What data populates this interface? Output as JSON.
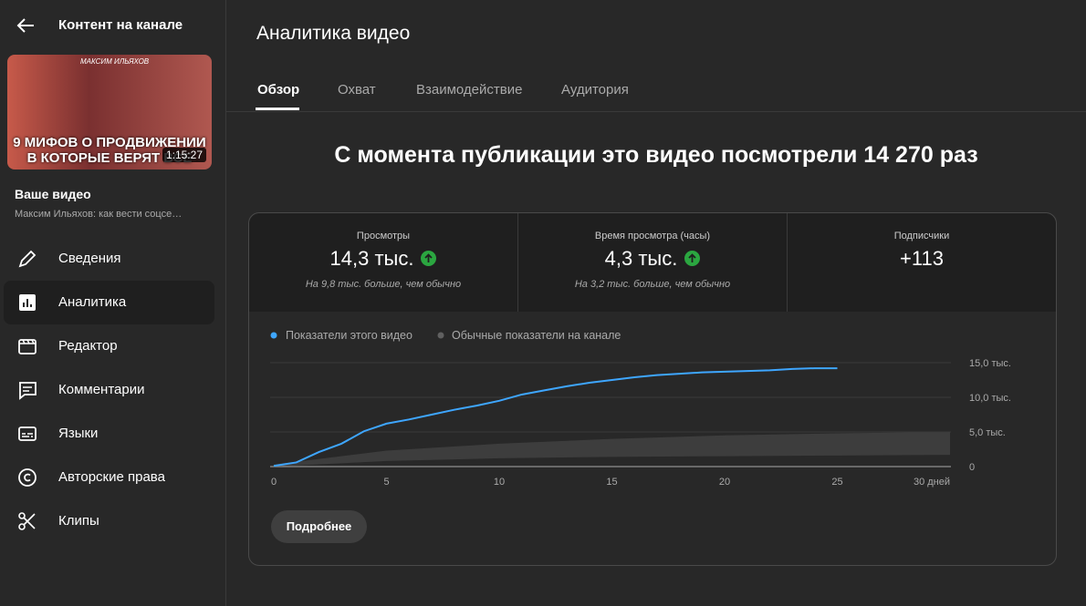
{
  "sidebar": {
    "title": "Контент на канале",
    "thumbnail": {
      "author": "МАКСИМ ИЛЬЯХОВ",
      "line1": "9 МИФОВ О ПРОДВИЖЕНИИ",
      "line2": "В КОТОРЫЕ ВЕРЯТ ВСЕ",
      "duration": "1:15:27"
    },
    "video_label": "Ваше видео",
    "video_title": "Максим Ильяхов: как вести соцсе…",
    "nav": [
      "Сведения",
      "Аналитика",
      "Редактор",
      "Комментарии",
      "Языки",
      "Авторские права",
      "Клипы"
    ]
  },
  "header": {
    "title": "Аналитика видео",
    "tabs": [
      "Обзор",
      "Охват",
      "Взаимодействие",
      "Аудитория"
    ]
  },
  "headline": "С момента публикации это видео посмотрели 14 270 раз",
  "metrics": [
    {
      "label": "Просмотры",
      "value": "14,3 тыс.",
      "note": "На 9,8 тыс. больше, чем обычно"
    },
    {
      "label": "Время просмотра (часы)",
      "value": "4,3 тыс.",
      "note": "На 3,2 тыс. больше, чем обычно"
    },
    {
      "label": "Подписчики",
      "value": "+113"
    }
  ],
  "chart_data": {
    "type": "line",
    "xlim": [
      0,
      30
    ],
    "xticks": [
      0,
      5,
      10,
      15,
      20,
      25,
      {
        "value": 30,
        "label": "30 дней"
      }
    ],
    "ylim": [
      0,
      15000
    ],
    "yticks": [
      0,
      {
        "value": 5000,
        "label": "5,0 тыс."
      },
      {
        "value": 10000,
        "label": "10,0 тыс."
      },
      {
        "value": 15000,
        "label": "15,0 тыс."
      }
    ],
    "grid": true,
    "series": [
      {
        "name": "Показатели этого видео",
        "color": "#3ea6ff",
        "x": [
          0,
          1,
          2,
          3,
          4,
          5,
          6,
          7,
          8,
          9,
          10,
          11,
          12,
          13,
          14,
          15,
          16,
          17,
          18,
          19,
          20,
          21,
          22,
          23,
          24,
          25
        ],
        "values": [
          100,
          600,
          2100,
          3300,
          5100,
          6200,
          6800,
          7500,
          8200,
          8800,
          9500,
          10400,
          11000,
          11600,
          12100,
          12500,
          12900,
          13200,
          13400,
          13600,
          13700,
          13800,
          13900,
          14100,
          14200,
          14200
        ]
      },
      {
        "name": "Обычные показатели на канале",
        "color": "#606060",
        "x": [
          0,
          5,
          10,
          15,
          20,
          25,
          30
        ],
        "values": [
          300,
          2300,
          3300,
          4000,
          4500,
          4800,
          5000
        ],
        "low": [
          0,
          800,
          1200,
          1400,
          1500,
          1600,
          1700
        ]
      }
    ]
  },
  "button": "Подробнее"
}
